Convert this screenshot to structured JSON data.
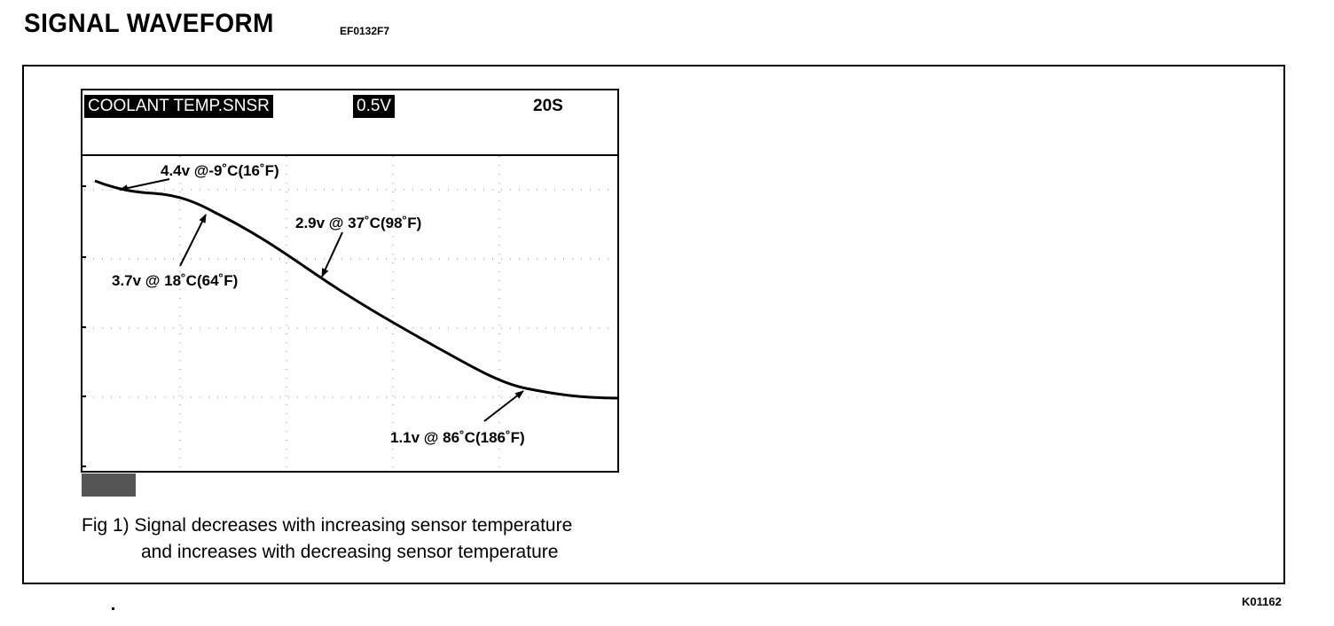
{
  "header": {
    "title": "SIGNAL  WAVEFORM",
    "doc_code": "EF0132F7"
  },
  "scope": {
    "channel_label": "COOLANT TEMP.SNSR",
    "volt_scale": "0.5V",
    "time_scale": "20S",
    "annotations": [
      {
        "text": "4.4v @-9˚C(16˚F)"
      },
      {
        "text": "2.9v @ 37˚C(98˚F)"
      },
      {
        "text": "3.7v @ 18˚C(64˚F)"
      },
      {
        "text": "1.1v @ 86˚C(186˚F)"
      }
    ]
  },
  "caption": {
    "line1": "Fig 1) Signal decreases with increasing sensor temperature",
    "line2": "and increases with decreasing sensor temperature"
  },
  "footer": {
    "ref_code": "K01162"
  },
  "colors": {
    "trace": "#000000",
    "footer_block": "#555555"
  }
}
